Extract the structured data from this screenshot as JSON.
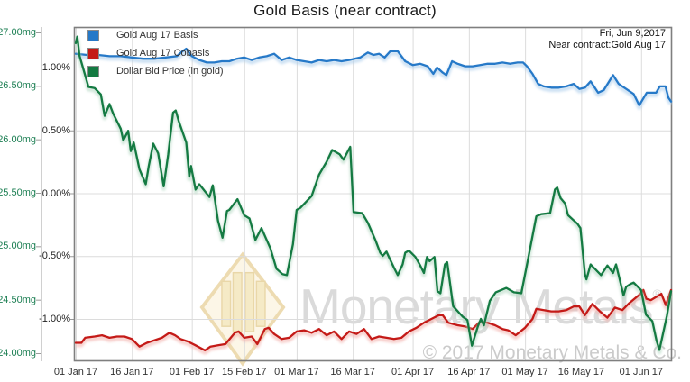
{
  "title": "Gold Basis (near contract)",
  "annotation": {
    "line1": "Fri, Jun 9,2017",
    "line2": "Near contract:Gold Aug 17"
  },
  "watermark": {
    "brand": "Monetary Metals",
    "registered": "®",
    "copyright": "© 2017 Monetary Metals & Co."
  },
  "colors": {
    "basis_line": "#2679c8",
    "basis_glow": "#aecfec",
    "cobasis_line": "#c41a17",
    "cobasis_glow": "#f3b3ae",
    "price_line": "#147a42",
    "price_glow": "#b6d9c4",
    "mg_axis_text": "#1b7e52",
    "grid": "#dcdcdc",
    "border": "#7f7f7f",
    "logo_fill": "#f7edcd",
    "logo_stroke": "#e7d098"
  },
  "chart_data": {
    "type": "line",
    "title": "Gold Basis (near contract)",
    "x_unit": "days since 01 Jan 2017 (ends Fri, Jun 9, 2017)",
    "grid": true,
    "legend_position": "top-left",
    "x_ticks": {
      "days": [
        0,
        15,
        31,
        45,
        59,
        74,
        90,
        105,
        120,
        135,
        151
      ],
      "labels": [
        "01 Jan 17",
        "16 Jan 17",
        "01 Feb 17",
        "15 Feb 17",
        "01 Mar 17",
        "16 Mar 17",
        "01 Apr 17",
        "16 Apr 17",
        "01 May 17",
        "16 May 17",
        "01 Jun 17"
      ]
    },
    "y_axis_mg": {
      "labels": [
        "27.00mg",
        "26.50mg",
        "26.00mg",
        "25.50mg",
        "25.00mg",
        "24.50mg",
        "24.00mg"
      ],
      "values": [
        27.0,
        26.5,
        26.0,
        25.5,
        25.0,
        24.5,
        24.0
      ],
      "range_visible": [
        23.92,
        27.05
      ]
    },
    "y_axis_pct": {
      "labels": [
        "1.00%",
        "0.50%",
        "0.00%",
        "-0.50%",
        "-1.00%"
      ],
      "values": [
        1.0,
        0.5,
        0.0,
        -0.5,
        -1.0
      ],
      "range_visible": [
        -1.34,
        1.32
      ]
    },
    "series": [
      {
        "name": "Gold Aug 17 Basis",
        "axis": "pct",
        "color": "#2679c8",
        "glow": "#aecfec",
        "points": [
          [
            0,
            1.11
          ],
          [
            3,
            1.1
          ],
          [
            6,
            1.1
          ],
          [
            9,
            1.09
          ],
          [
            12,
            1.09
          ],
          [
            15,
            1.08
          ],
          [
            18,
            1.07
          ],
          [
            21,
            1.07
          ],
          [
            24,
            1.08
          ],
          [
            27,
            1.09
          ],
          [
            28.5,
            1.13
          ],
          [
            29.5,
            1.15
          ],
          [
            31,
            1.09
          ],
          [
            33,
            1.06
          ],
          [
            35,
            1.04
          ],
          [
            37,
            1.04
          ],
          [
            39,
            1.05
          ],
          [
            41,
            1.05
          ],
          [
            43,
            1.07
          ],
          [
            45,
            1.08
          ],
          [
            47,
            1.06
          ],
          [
            49,
            1.08
          ],
          [
            51,
            1.09
          ],
          [
            53,
            1.11
          ],
          [
            55,
            1.06
          ],
          [
            57,
            1.08
          ],
          [
            59,
            1.06
          ],
          [
            61,
            1.05
          ],
          [
            63,
            1.04
          ],
          [
            65,
            1.06
          ],
          [
            67,
            1.05
          ],
          [
            69,
            1.06
          ],
          [
            71,
            1.05
          ],
          [
            73,
            1.06
          ],
          [
            76,
            1.08
          ],
          [
            78,
            1.12
          ],
          [
            79.5,
            1.1
          ],
          [
            81,
            1.11
          ],
          [
            82.5,
            1.08
          ],
          [
            84,
            1.13
          ],
          [
            86,
            1.13
          ],
          [
            88,
            1.05
          ],
          [
            90,
            1.02
          ],
          [
            92,
            1.03
          ],
          [
            94,
            1.01
          ],
          [
            95.5,
            0.95
          ],
          [
            96.5,
            1.0
          ],
          [
            98,
            0.96
          ],
          [
            99,
            0.94
          ],
          [
            100.5,
            1.05
          ],
          [
            102,
            1.03
          ],
          [
            104,
            1.01
          ],
          [
            106,
            1.01
          ],
          [
            108,
            1.02
          ],
          [
            110,
            1.03
          ],
          [
            112,
            1.03
          ],
          [
            114,
            1.04
          ],
          [
            116,
            1.03
          ],
          [
            118,
            1.04
          ],
          [
            119.5,
            1.04
          ],
          [
            120.5,
            1.01
          ],
          [
            122,
            0.95
          ],
          [
            123.5,
            0.87
          ],
          [
            125,
            0.85
          ],
          [
            127,
            0.84
          ],
          [
            129,
            0.84
          ],
          [
            131,
            0.85
          ],
          [
            133,
            0.87
          ],
          [
            134.5,
            0.83
          ],
          [
            136,
            0.84
          ],
          [
            137.5,
            0.89
          ],
          [
            139.5,
            0.8
          ],
          [
            141,
            0.82
          ],
          [
            143.5,
            0.94
          ],
          [
            145,
            0.87
          ],
          [
            146,
            0.85
          ],
          [
            147,
            0.83
          ],
          [
            149,
            0.79
          ],
          [
            150.5,
            0.7
          ],
          [
            152.5,
            0.8
          ],
          [
            155,
            0.8
          ],
          [
            156,
            0.85
          ],
          [
            157.5,
            0.85
          ],
          [
            158.3,
            0.76
          ],
          [
            159,
            0.73
          ]
        ]
      },
      {
        "name": "Gold Aug 17 Cobasis",
        "axis": "pct",
        "color": "#c41a17",
        "glow": "#f3b3ae",
        "points": [
          [
            0,
            -1.19
          ],
          [
            1.5,
            -1.19
          ],
          [
            2.5,
            -1.15
          ],
          [
            5,
            -1.14
          ],
          [
            7,
            -1.13
          ],
          [
            9,
            -1.15
          ],
          [
            11,
            -1.14
          ],
          [
            13,
            -1.14
          ],
          [
            15,
            -1.16
          ],
          [
            17,
            -1.22
          ],
          [
            19,
            -1.19
          ],
          [
            21,
            -1.17
          ],
          [
            23,
            -1.15
          ],
          [
            25,
            -1.11
          ],
          [
            26.5,
            -1.13
          ],
          [
            28,
            -1.16
          ],
          [
            30,
            -1.18
          ],
          [
            32,
            -1.21
          ],
          [
            34.5,
            -1.25
          ],
          [
            36,
            -1.22
          ],
          [
            38,
            -1.21
          ],
          [
            40,
            -1.2
          ],
          [
            42.5,
            -1.11
          ],
          [
            43.5,
            -1.1
          ],
          [
            45,
            -1.15
          ],
          [
            47,
            -1.14
          ],
          [
            48.5,
            -1.2
          ],
          [
            50.5,
            -1.08
          ],
          [
            51.5,
            -1.07
          ],
          [
            53,
            -1.12
          ],
          [
            55,
            -1.16
          ],
          [
            57,
            -1.15
          ],
          [
            59,
            -1.1
          ],
          [
            61,
            -1.09
          ],
          [
            63,
            -1.11
          ],
          [
            65,
            -1.08
          ],
          [
            67,
            -1.13
          ],
          [
            69,
            -1.1
          ],
          [
            71,
            -1.16
          ],
          [
            73,
            -1.1
          ],
          [
            75,
            -1.12
          ],
          [
            77,
            -1.08
          ],
          [
            79,
            -1.16
          ],
          [
            81,
            -1.14
          ],
          [
            83,
            -1.15
          ],
          [
            85,
            -1.16
          ],
          [
            87,
            -1.15
          ],
          [
            89,
            -1.1
          ],
          [
            91,
            -1.07
          ],
          [
            93,
            -1.03
          ],
          [
            95,
            -1.0
          ],
          [
            97,
            -0.97
          ],
          [
            98,
            -0.97
          ],
          [
            99.5,
            -1.03
          ],
          [
            102,
            -1.05
          ],
          [
            104,
            -1.06
          ],
          [
            106,
            -1.08
          ],
          [
            108,
            -1.02
          ],
          [
            110,
            -1.03
          ],
          [
            112,
            -1.05
          ],
          [
            114,
            -1.08
          ],
          [
            115.5,
            -1.09
          ],
          [
            117.5,
            -1.13
          ],
          [
            120,
            -1.07
          ],
          [
            122,
            -1.0
          ],
          [
            123,
            -0.92
          ],
          [
            125,
            -0.93
          ],
          [
            127,
            -0.94
          ],
          [
            129,
            -0.94
          ],
          [
            131,
            -0.93
          ],
          [
            133,
            -0.9
          ],
          [
            134.5,
            -0.9
          ],
          [
            136,
            -0.97
          ],
          [
            138,
            -0.88
          ],
          [
            140,
            -0.94
          ],
          [
            142,
            -0.99
          ],
          [
            144,
            -0.91
          ],
          [
            146,
            -0.93
          ],
          [
            147.6,
            -0.88
          ],
          [
            149.2,
            -0.84
          ],
          [
            150.8,
            -0.8
          ],
          [
            151.6,
            -0.77
          ],
          [
            152.4,
            -0.84
          ],
          [
            153.6,
            -0.85
          ],
          [
            156.4,
            -0.8
          ],
          [
            157.6,
            -0.89
          ],
          [
            159,
            -0.77
          ]
        ]
      },
      {
        "name": "Dollar Bid Price (in gold)",
        "axis": "mg",
        "color": "#147a42",
        "glow": "#b6d9c4",
        "points": [
          [
            0,
            26.9
          ],
          [
            0.4,
            26.96
          ],
          [
            1,
            26.78
          ],
          [
            3.4,
            26.49
          ],
          [
            5,
            26.48
          ],
          [
            6.7,
            26.42
          ],
          [
            7.7,
            26.22
          ],
          [
            9,
            26.33
          ],
          [
            10,
            26.24
          ],
          [
            12,
            26.1
          ],
          [
            12.7,
            25.99
          ],
          [
            14,
            26.08
          ],
          [
            14.7,
            25.89
          ],
          [
            15.5,
            25.97
          ],
          [
            17,
            25.72
          ],
          [
            18.7,
            25.58
          ],
          [
            19.5,
            25.75
          ],
          [
            20.7,
            25.96
          ],
          [
            22,
            25.87
          ],
          [
            23.5,
            25.56
          ],
          [
            24.7,
            25.86
          ],
          [
            26,
            26.25
          ],
          [
            26.7,
            26.27
          ],
          [
            27.5,
            26.17
          ],
          [
            29.5,
            25.97
          ],
          [
            30.3,
            25.65
          ],
          [
            30.8,
            25.75
          ],
          [
            32,
            25.53
          ],
          [
            33,
            25.58
          ],
          [
            35.7,
            25.46
          ],
          [
            36.6,
            25.57
          ],
          [
            38,
            25.24
          ],
          [
            39.2,
            25.08
          ],
          [
            40.4,
            25.33
          ],
          [
            41,
            25.34
          ],
          [
            43.2,
            25.44
          ],
          [
            45,
            25.29
          ],
          [
            46.4,
            25.26
          ],
          [
            48,
            25.06
          ],
          [
            49.6,
            25.17
          ],
          [
            52,
            24.98
          ],
          [
            53.6,
            24.79
          ],
          [
            55.2,
            24.74
          ],
          [
            56.4,
            24.73
          ],
          [
            58,
            25.02
          ],
          [
            59,
            25.34
          ],
          [
            60,
            25.36
          ],
          [
            63,
            25.47
          ],
          [
            65,
            25.67
          ],
          [
            67,
            25.79
          ],
          [
            68.5,
            25.9
          ],
          [
            70.5,
            25.86
          ],
          [
            71.5,
            25.81
          ],
          [
            73.3,
            25.93
          ],
          [
            74.2,
            25.32
          ],
          [
            76.5,
            25.31
          ],
          [
            78,
            25.22
          ],
          [
            80,
            25.06
          ],
          [
            81.3,
            24.94
          ],
          [
            82,
            24.91
          ],
          [
            83,
            24.95
          ],
          [
            83.5,
            24.91
          ],
          [
            85,
            24.8
          ],
          [
            86,
            24.73
          ],
          [
            87.3,
            24.83
          ],
          [
            88,
            24.94
          ],
          [
            89,
            24.96
          ],
          [
            90.7,
            24.9
          ],
          [
            92,
            24.82
          ],
          [
            93,
            24.75
          ],
          [
            93.8,
            24.9
          ],
          [
            94.5,
            24.86
          ],
          [
            95.8,
            24.9
          ],
          [
            96.6,
            24.58
          ],
          [
            97.4,
            24.56
          ],
          [
            98.6,
            24.83
          ],
          [
            99.2,
            24.85
          ],
          [
            100.8,
            24.44
          ],
          [
            102.6,
            24.37
          ],
          [
            103.4,
            24.34
          ],
          [
            104.6,
            24.31
          ],
          [
            105.8,
            24.07
          ],
          [
            107.4,
            24.25
          ],
          [
            108.2,
            24.32
          ],
          [
            109,
            24.26
          ],
          [
            110.6,
            24.49
          ],
          [
            112.2,
            24.57
          ],
          [
            115,
            24.61
          ],
          [
            117,
            24.57
          ],
          [
            119,
            24.56
          ],
          [
            120.7,
            24.86
          ],
          [
            123,
            25.28
          ],
          [
            124.3,
            25.3
          ],
          [
            126.7,
            25.31
          ],
          [
            128,
            25.53
          ],
          [
            128.6,
            25.55
          ],
          [
            129.5,
            25.45
          ],
          [
            130.7,
            25.4
          ],
          [
            131.5,
            25.29
          ],
          [
            134,
            25.21
          ],
          [
            134.8,
            25.17
          ],
          [
            136,
            24.74
          ],
          [
            136.4,
            24.69
          ],
          [
            137.5,
            24.83
          ],
          [
            140.3,
            24.73
          ],
          [
            142,
            24.82
          ],
          [
            143.5,
            24.75
          ],
          [
            144.3,
            24.83
          ],
          [
            146.3,
            24.54
          ],
          [
            147,
            24.62
          ],
          [
            148.3,
            24.65
          ],
          [
            149,
            24.66
          ],
          [
            151,
            24.59
          ],
          [
            152.3,
            24.36
          ],
          [
            154,
            24.3
          ],
          [
            155.1,
            24.12
          ],
          [
            155.9,
            24.03
          ],
          [
            157.9,
            24.35
          ],
          [
            159,
            24.58
          ]
        ]
      }
    ]
  }
}
